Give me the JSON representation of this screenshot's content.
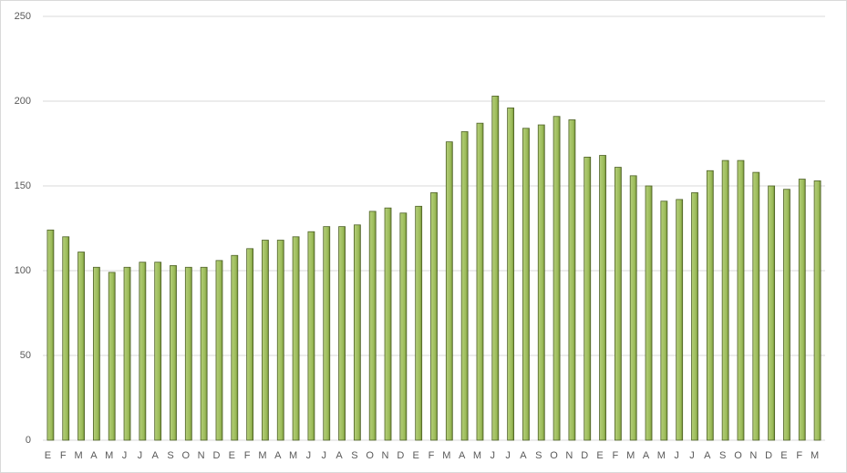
{
  "chart_data": {
    "type": "bar",
    "categories": [
      "E",
      "F",
      "M",
      "A",
      "M",
      "J",
      "J",
      "A",
      "S",
      "O",
      "N",
      "D",
      "E",
      "F",
      "M",
      "A",
      "M",
      "J",
      "J",
      "A",
      "S",
      "O",
      "N",
      "D",
      "E",
      "F",
      "M",
      "A",
      "M",
      "J",
      "J",
      "A",
      "S",
      "O",
      "N",
      "D",
      "E",
      "F",
      "M",
      "A",
      "M",
      "J",
      "J",
      "A",
      "S",
      "O",
      "N",
      "D",
      "E",
      "F",
      "M"
    ],
    "values": [
      124,
      120,
      111,
      102,
      99,
      102,
      105,
      105,
      103,
      102,
      102,
      106,
      109,
      113,
      118,
      118,
      120,
      123,
      126,
      126,
      127,
      135,
      137,
      134,
      138,
      146,
      176,
      182,
      187,
      203,
      196,
      184,
      186,
      191,
      189,
      167,
      168,
      161,
      156,
      150,
      141,
      142,
      146,
      159,
      165,
      165,
      158,
      150,
      148,
      154,
      153
    ],
    "color": "#9bbb59",
    "ylim": [
      0,
      250
    ],
    "yticks": [
      0,
      50,
      100,
      150,
      200,
      250
    ],
    "grid": true
  }
}
